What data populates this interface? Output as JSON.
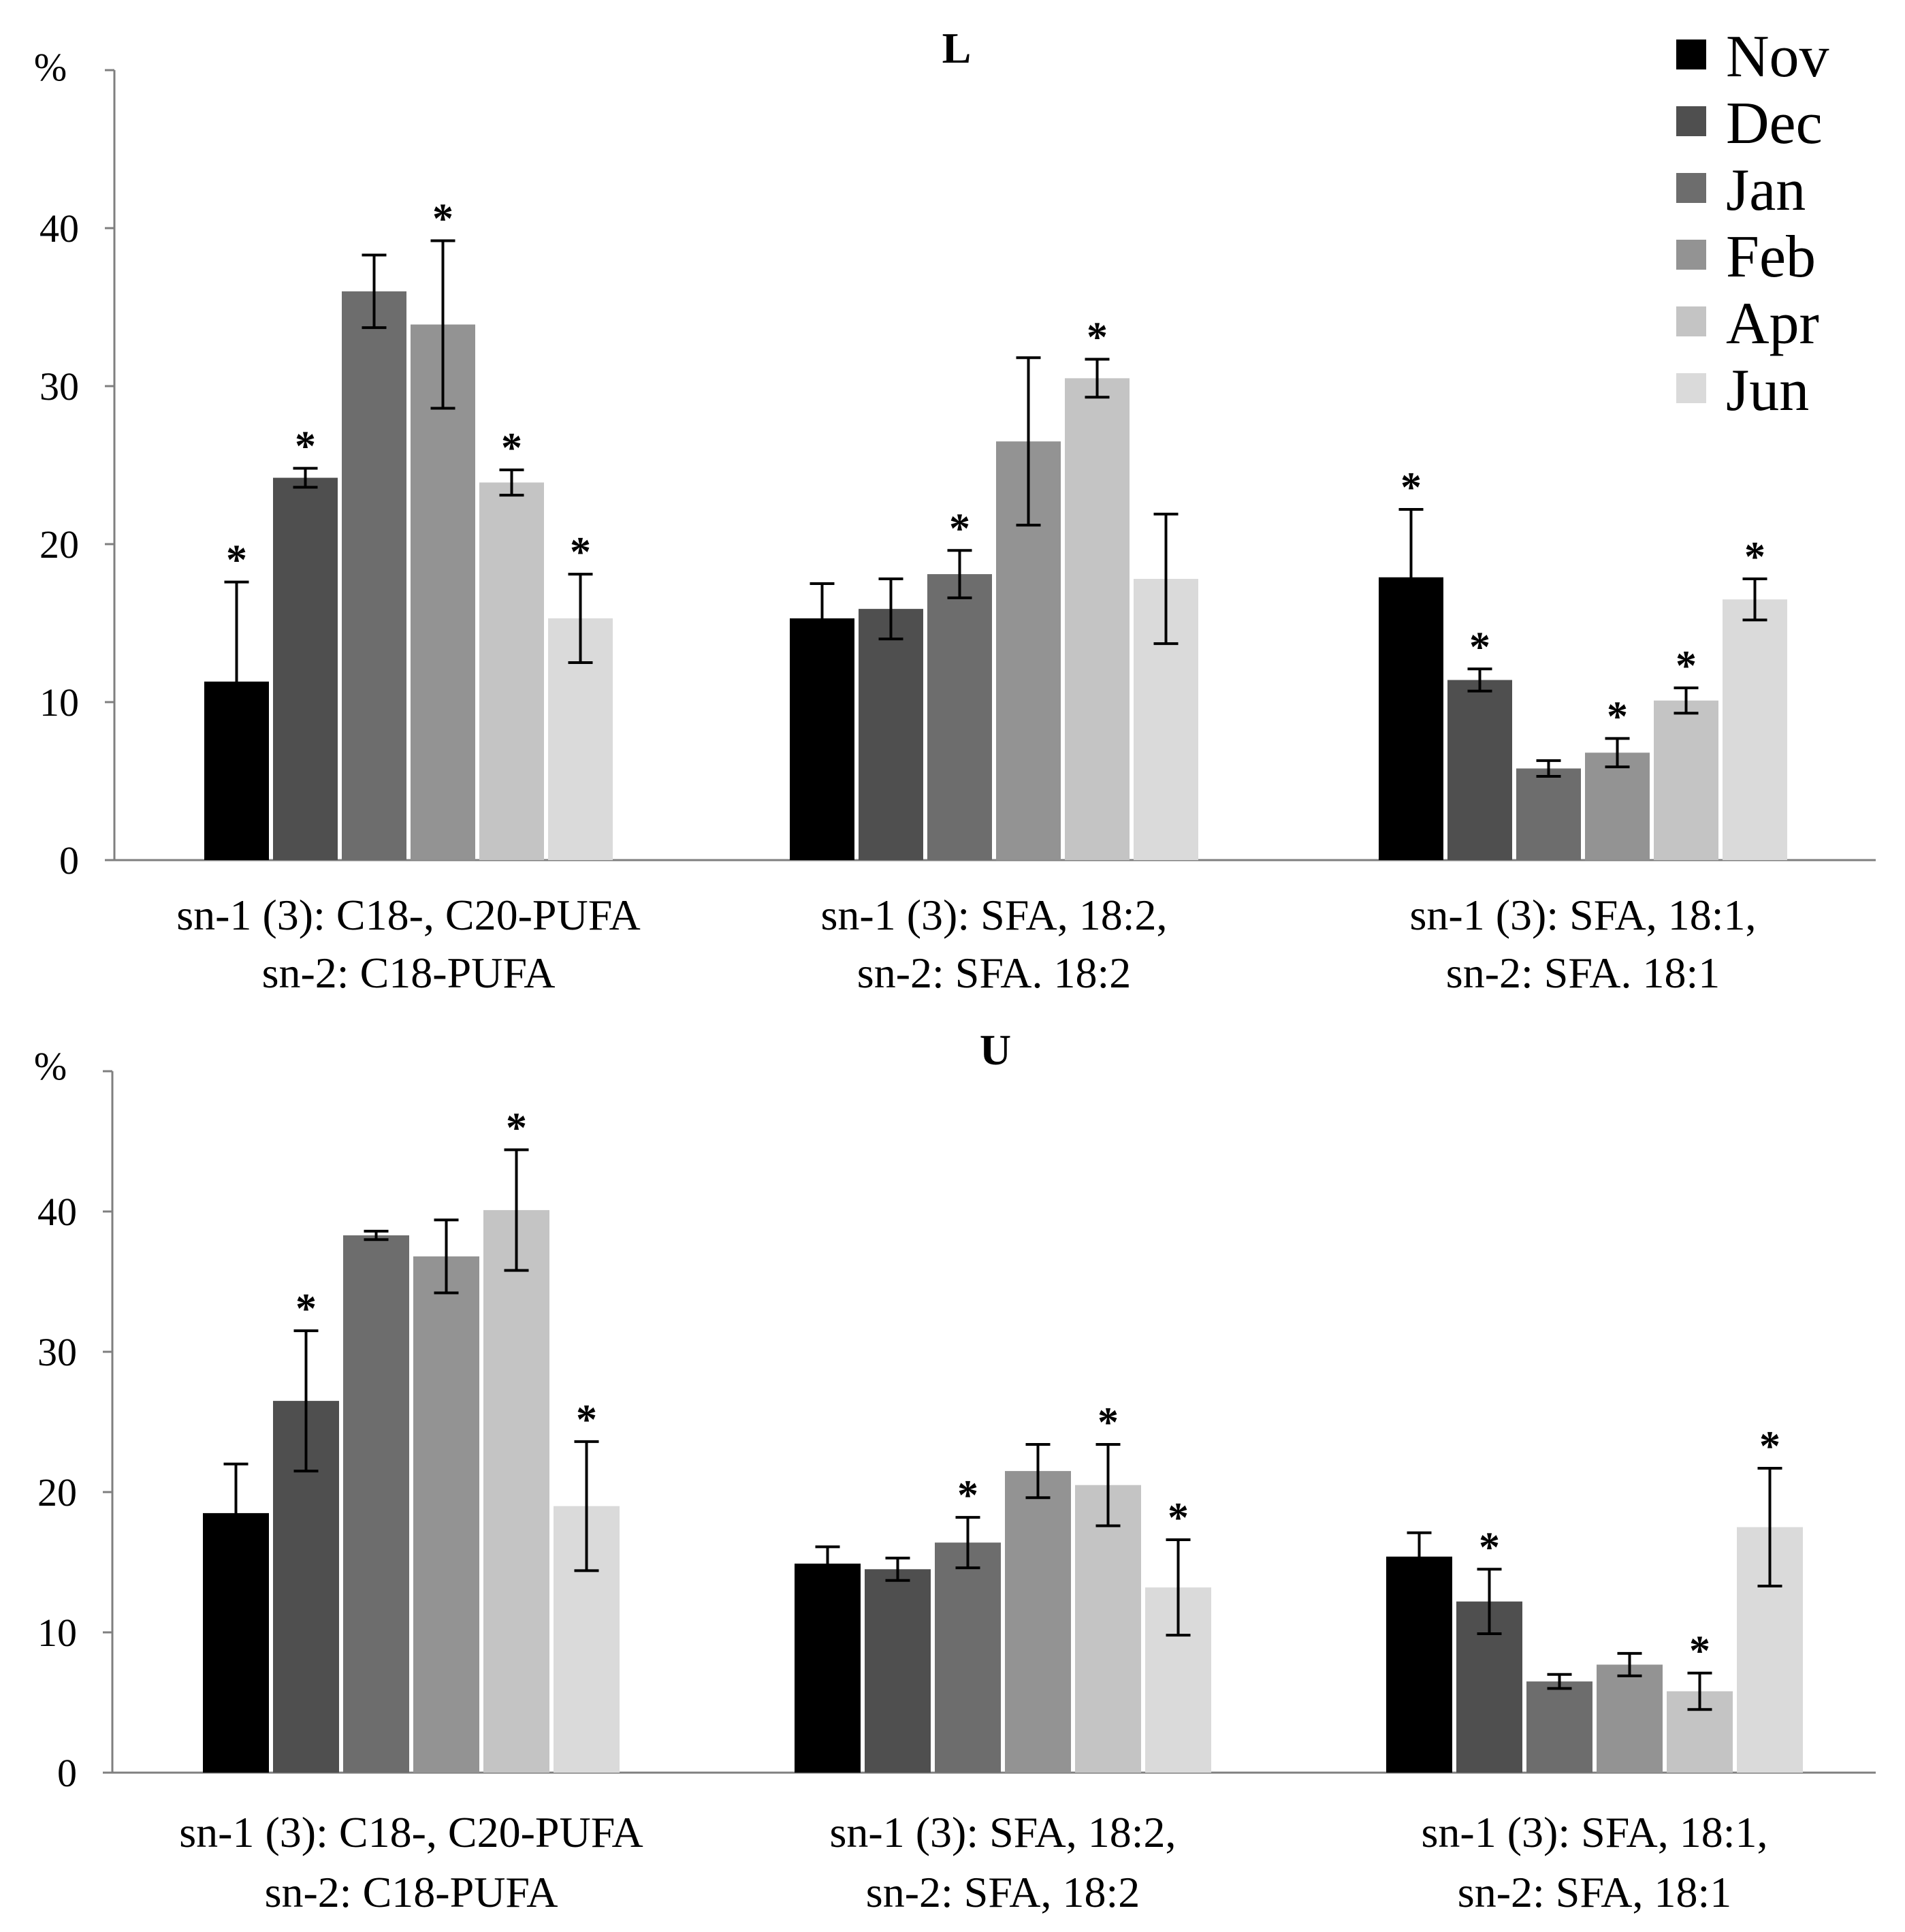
{
  "legend": {
    "items": [
      {
        "label": "Nov",
        "color": "#000000"
      },
      {
        "label": "Dec",
        "color": "#4f4f4f"
      },
      {
        "label": "Jan",
        "color": "#6d6d6d"
      },
      {
        "label": "Feb",
        "color": "#939393"
      },
      {
        "label": "Apr",
        "color": "#c4c4c4"
      },
      {
        "label": "Jun",
        "color": "#dadada"
      }
    ]
  },
  "chart_data": [
    {
      "type": "bar",
      "title": "L",
      "ylabel": "%",
      "ylim": [
        0,
        50
      ],
      "yticks": [
        "0",
        "10",
        "20",
        "30",
        "40"
      ],
      "categories": [
        [
          "sn-1 (3): C18-, C20-PUFA",
          "sn-2: C18-PUFA"
        ],
        [
          "sn-1 (3): SFA, 18:2,",
          "sn-2: SFA. 18:2"
        ],
        [
          "sn-1 (3): SFA, 18:1,",
          "sn-2: SFA. 18:1"
        ]
      ],
      "significance_marker": "*",
      "series": [
        {
          "name": "Nov",
          "values": [
            11.3,
            15.3,
            17.9
          ],
          "errors": [
            6.3,
            2.2,
            4.3
          ],
          "significant": [
            true,
            false,
            true
          ]
        },
        {
          "name": "Dec",
          "values": [
            24.2,
            15.9,
            11.4
          ],
          "errors": [
            0.6,
            1.9,
            0.7
          ],
          "significant": [
            true,
            false,
            true
          ]
        },
        {
          "name": "Jan",
          "values": [
            36.0,
            18.1,
            5.8
          ],
          "errors": [
            2.3,
            1.5,
            0.5
          ],
          "significant": [
            false,
            true,
            false
          ]
        },
        {
          "name": "Feb",
          "values": [
            33.9,
            26.5,
            6.8
          ],
          "errors": [
            5.3,
            5.3,
            0.9
          ],
          "significant": [
            true,
            false,
            true
          ]
        },
        {
          "name": "Apr",
          "values": [
            23.9,
            30.5,
            10.1
          ],
          "errors": [
            0.8,
            1.2,
            0.8
          ],
          "significant": [
            true,
            true,
            true
          ]
        },
        {
          "name": "Jun",
          "values": [
            15.3,
            17.8,
            16.5
          ],
          "errors": [
            2.8,
            4.1,
            1.3
          ],
          "significant": [
            true,
            false,
            true
          ]
        }
      ]
    },
    {
      "type": "bar",
      "title": "U",
      "ylabel": "%",
      "ylim": [
        0,
        50
      ],
      "yticks": [
        "0",
        "10",
        "20",
        "30",
        "40"
      ],
      "categories": [
        [
          "sn-1 (3): C18-, C20-PUFA",
          "sn-2: C18-PUFA"
        ],
        [
          "sn-1 (3): SFA, 18:2,",
          "sn-2: SFA, 18:2"
        ],
        [
          "sn-1 (3): SFA, 18:1,",
          "sn-2: SFA, 18:1"
        ]
      ],
      "significance_marker": "*",
      "series": [
        {
          "name": "Nov",
          "values": [
            18.5,
            14.9,
            15.4
          ],
          "errors": [
            3.5,
            1.2,
            1.7
          ],
          "significant": [
            false,
            false,
            false
          ]
        },
        {
          "name": "Dec",
          "values": [
            26.5,
            14.5,
            12.2
          ],
          "errors": [
            5.0,
            0.8,
            2.3
          ],
          "significant": [
            true,
            false,
            true
          ]
        },
        {
          "name": "Jan",
          "values": [
            38.3,
            16.4,
            6.5
          ],
          "errors": [
            0.3,
            1.8,
            0.5
          ],
          "significant": [
            false,
            true,
            false
          ]
        },
        {
          "name": "Feb",
          "values": [
            36.8,
            21.5,
            7.7
          ],
          "errors": [
            2.6,
            1.9,
            0.8
          ],
          "significant": [
            false,
            false,
            false
          ]
        },
        {
          "name": "Apr",
          "values": [
            40.1,
            20.5,
            5.8
          ],
          "errors": [
            4.3,
            2.9,
            1.3
          ],
          "significant": [
            true,
            true,
            true
          ]
        },
        {
          "name": "Jun",
          "values": [
            19.0,
            13.2,
            17.5
          ],
          "errors": [
            4.6,
            3.4,
            4.2
          ],
          "significant": [
            true,
            true,
            true
          ]
        }
      ]
    }
  ]
}
